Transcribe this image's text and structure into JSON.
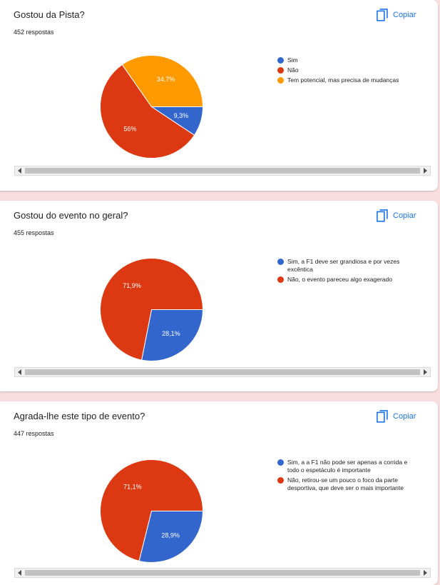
{
  "copy_label": "Copiar",
  "cards": [
    {
      "title": "Gostou da Pista?",
      "responses": "452 respostas",
      "chart_data": {
        "type": "pie",
        "categories": [
          "Sim",
          "Não",
          "Tem potencial, mas precisa de mudanças"
        ],
        "values": [
          9.3,
          56,
          34.7
        ],
        "data_labels": [
          "9,3%",
          "56%",
          "34,7%"
        ],
        "colors": [
          "#3366cc",
          "#dc3912",
          "#ff9900"
        ],
        "legend": [
          "Sim",
          "Não",
          "Tem potencial, mas precisa de mudanças"
        ],
        "legend_position": "right"
      }
    },
    {
      "title": "Gostou do evento no geral?",
      "responses": "455 respostas",
      "chart_data": {
        "type": "pie",
        "categories": [
          "Sim, a F1 deve ser grandiosa e por vezes excêntica",
          "Não, o evento pareceu algo exagerado"
        ],
        "values": [
          28.1,
          71.9
        ],
        "data_labels": [
          "28,1%",
          "71,9%"
        ],
        "colors": [
          "#3366cc",
          "#dc3912"
        ],
        "legend": [
          "Sim, a F1 deve ser grandiosa e por vezes excêntica",
          "Não, o evento pareceu algo exagerado"
        ],
        "legend_position": "right"
      }
    },
    {
      "title": "Agrada-lhe este tipo de evento?",
      "responses": "447 respostas",
      "chart_data": {
        "type": "pie",
        "categories": [
          "Sim, a a F1 não pode ser apenas a corrida e todo o espetáculo é importante",
          "Não, retirou-se um pouco o foco da parte desportiva, que deve ser o mais importante"
        ],
        "values": [
          28.9,
          71.1
        ],
        "data_labels": [
          "28,9%",
          "71,1%"
        ],
        "colors": [
          "#3366cc",
          "#dc3912"
        ],
        "legend": [
          "Sim, a a F1 não pode ser apenas a corrida e todo o espetáculo é importante",
          "Não, retirou-se um pouco o foco da parte desportiva, que deve ser o mais importante"
        ],
        "legend_position": "right"
      }
    }
  ]
}
